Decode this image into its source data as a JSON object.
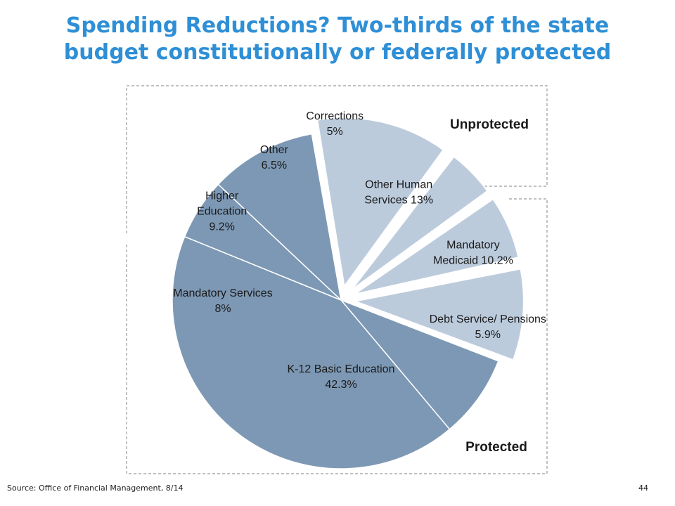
{
  "slide": {
    "title_line1": "Spending Reductions? Two-thirds of the state",
    "title_line2": "budget constitutionally or federally protected",
    "source": "Source: Office of Financial Management, 8/14",
    "page_number": "44"
  },
  "colors": {
    "title": "#2e8fd6",
    "unprotected_fill": "#bccbdc",
    "protected_fill": "#7d98b4",
    "group_border": "#9a9a9a"
  },
  "chart_data": {
    "type": "pie",
    "title": "",
    "legend": "none",
    "groups": [
      {
        "name": "Unprotected",
        "label": "Unprotected"
      },
      {
        "name": "Protected",
        "label": "Protected"
      }
    ],
    "slices": [
      {
        "lines": [
          "Other Human",
          "Services 13%"
        ],
        "value": 13.0,
        "group": "Unprotected"
      },
      {
        "lines": [
          "Corrections",
          "5%"
        ],
        "value": 5.0,
        "group": "Unprotected"
      },
      {
        "lines": [
          "Other",
          "6.5%"
        ],
        "value": 6.5,
        "group": "Unprotected"
      },
      {
        "lines": [
          "Higher",
          "Education",
          "9.2%"
        ],
        "value": 9.2,
        "group": "Unprotected"
      },
      {
        "lines": [
          "Mandatory Services",
          "8%"
        ],
        "value": 8.0,
        "group": "Protected"
      },
      {
        "lines": [
          "K-12 Basic Education",
          "42.3%"
        ],
        "value": 42.3,
        "group": "Protected"
      },
      {
        "lines": [
          "Debt Service/ Pensions",
          "5.9%"
        ],
        "value": 5.9,
        "group": "Protected"
      },
      {
        "lines": [
          "Mandatory",
          "Medicaid  10.2%"
        ],
        "value": 10.2,
        "group": "Protected"
      }
    ]
  }
}
